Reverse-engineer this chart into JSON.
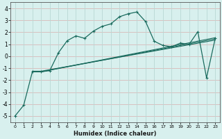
{
  "xlabel": "Humidex (Indice chaleur)",
  "xlim": [
    -0.5,
    23.5
  ],
  "ylim": [
    -5.5,
    4.5
  ],
  "yticks": [
    -5,
    -4,
    -3,
    -2,
    -1,
    0,
    1,
    2,
    3,
    4
  ],
  "xticks": [
    0,
    1,
    2,
    3,
    4,
    5,
    6,
    7,
    8,
    9,
    10,
    11,
    12,
    13,
    14,
    15,
    16,
    17,
    18,
    19,
    20,
    21,
    22,
    23
  ],
  "background_color": "#d8f0ee",
  "grid_color_h": "#d8b8b8",
  "grid_color_v": "#b8d8d4",
  "line_color": "#1a6b5e",
  "lines": [
    {
      "x": [
        0,
        1,
        2,
        3,
        4,
        5,
        6,
        7,
        8,
        9,
        10,
        11,
        12,
        13,
        14,
        15,
        16,
        17,
        18,
        19,
        20,
        21,
        22,
        23
      ],
      "y": [
        -5.0,
        -4.1,
        -1.3,
        -1.3,
        -1.2,
        0.3,
        1.3,
        1.7,
        1.5,
        2.1,
        2.5,
        2.7,
        3.3,
        3.55,
        3.7,
        2.9,
        1.25,
        0.9,
        0.8,
        1.1,
        1.0,
        2.05,
        -1.8,
        1.5
      ],
      "has_markers": true
    },
    {
      "x": [
        2,
        3,
        23
      ],
      "y": [
        -1.3,
        -1.3,
        1.55
      ],
      "has_markers": false
    },
    {
      "x": [
        2,
        3,
        23
      ],
      "y": [
        -1.3,
        -1.3,
        1.45
      ],
      "has_markers": false
    },
    {
      "x": [
        2,
        3,
        23
      ],
      "y": [
        -1.25,
        -1.25,
        1.35
      ],
      "has_markers": false
    }
  ]
}
